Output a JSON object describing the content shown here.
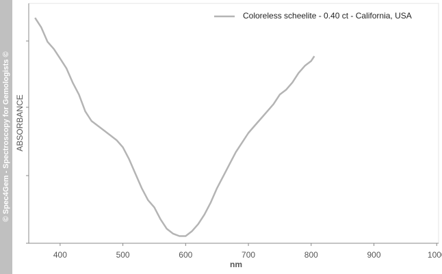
{
  "chart_data": {
    "type": "line",
    "watermark": "© Spec4Gem - Spectroscopy for Gemologists ©",
    "x_label": "nm",
    "y_label": "ABSORBANCE",
    "x": [
      360,
      370,
      380,
      390,
      400,
      410,
      420,
      430,
      440,
      450,
      460,
      470,
      480,
      490,
      500,
      510,
      520,
      530,
      540,
      550,
      560,
      570,
      580,
      590,
      600,
      610,
      620,
      630,
      640,
      650,
      660,
      670,
      680,
      690,
      700,
      710,
      720,
      730,
      740,
      750,
      760,
      770,
      780,
      790,
      800,
      805
    ],
    "series": [
      {
        "name": "Coloreless scheelite - 0.40 ct - California, USA",
        "color": "#b4b4b4",
        "values": [
          0.94,
          0.9,
          0.84,
          0.81,
          0.77,
          0.73,
          0.67,
          0.62,
          0.55,
          0.51,
          0.49,
          0.47,
          0.45,
          0.43,
          0.4,
          0.35,
          0.29,
          0.23,
          0.18,
          0.15,
          0.1,
          0.06,
          0.04,
          0.03,
          0.03,
          0.05,
          0.08,
          0.12,
          0.17,
          0.23,
          0.28,
          0.33,
          0.38,
          0.42,
          0.46,
          0.49,
          0.52,
          0.55,
          0.58,
          0.62,
          0.64,
          0.67,
          0.71,
          0.74,
          0.76,
          0.78
        ]
      }
    ],
    "xlim": [
      350,
      1003
    ],
    "ylim": [
      0,
      1
    ],
    "xticks": [
      400,
      500,
      600,
      700,
      800,
      900,
      1000
    ],
    "legend": "top-right"
  }
}
